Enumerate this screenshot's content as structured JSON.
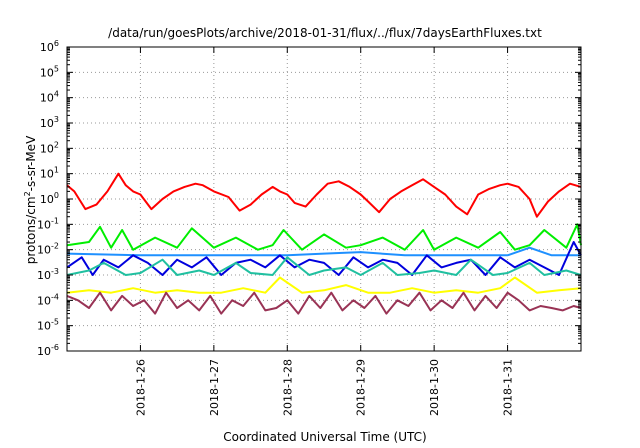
{
  "chart_data": {
    "type": "line",
    "title": "/data/run/goesPlots/archive/2018-01-31/flux/../flux/7daysEarthFluxes.txt",
    "xlabel": "Coordinated Universal Time (UTC)",
    "ylabel_parts": [
      "protons/cm",
      "2",
      "-s-sr-MeV"
    ],
    "yscale": "log",
    "ylim_exp": [
      -6,
      6
    ],
    "y_ticks": [
      {
        "base": "10",
        "exp": "-6"
      },
      {
        "base": "10",
        "exp": "-5"
      },
      {
        "base": "10",
        "exp": "-4"
      },
      {
        "base": "10",
        "exp": "-3"
      },
      {
        "base": "10",
        "exp": "-2"
      },
      {
        "base": "10",
        "exp": "-1"
      },
      {
        "base": "10",
        "exp": "0"
      },
      {
        "base": "10",
        "exp": "1"
      },
      {
        "base": "10",
        "exp": "2"
      },
      {
        "base": "10",
        "exp": "3"
      },
      {
        "base": "10",
        "exp": "4"
      },
      {
        "base": "10",
        "exp": "5"
      },
      {
        "base": "10",
        "exp": "6"
      }
    ],
    "x_range_days": [
      0,
      7
    ],
    "x_ticks": [
      {
        "label": "2018-1-26",
        "day": 1
      },
      {
        "label": "2018-1-27",
        "day": 2
      },
      {
        "label": "2018-1-28",
        "day": 3
      },
      {
        "label": "2018-1-29",
        "day": 4
      },
      {
        "label": "2018-1-30",
        "day": 5
      },
      {
        "label": "2018-1-31",
        "day": 6
      }
    ],
    "grid": true,
    "series": [
      {
        "color": "#ff0000",
        "days": [
          0.0,
          0.1,
          0.25,
          0.4,
          0.55,
          0.7,
          0.8,
          0.9,
          1.0,
          1.15,
          1.3,
          1.45,
          1.6,
          1.75,
          1.85,
          2.0,
          2.2,
          2.35,
          2.5,
          2.65,
          2.8,
          2.9,
          3.0,
          3.1,
          3.25,
          3.4,
          3.55,
          3.7,
          3.85,
          4.0,
          4.1,
          4.25,
          4.4,
          4.55,
          4.7,
          4.85,
          5.0,
          5.15,
          5.3,
          5.45,
          5.6,
          5.75,
          5.9,
          6.0,
          6.15,
          6.3,
          6.4,
          6.55,
          6.7,
          6.85,
          7.0
        ],
        "values": [
          3.5,
          2.0,
          0.4,
          0.6,
          2.0,
          10.0,
          3.5,
          2.0,
          1.5,
          0.4,
          1.0,
          2.0,
          3.0,
          4.0,
          3.5,
          2.0,
          1.2,
          0.35,
          0.6,
          1.5,
          3.0,
          2.0,
          1.5,
          0.7,
          0.5,
          1.5,
          4.0,
          5.0,
          3.0,
          1.5,
          0.8,
          0.3,
          1.0,
          2.0,
          3.5,
          6.0,
          3.0,
          1.5,
          0.5,
          0.25,
          1.5,
          2.5,
          3.5,
          4.0,
          3.0,
          1.0,
          0.2,
          0.8,
          2.0,
          4.0,
          3.0
        ]
      },
      {
        "color": "#00ee00",
        "days": [
          0.0,
          0.3,
          0.45,
          0.6,
          0.75,
          0.9,
          1.2,
          1.5,
          1.7,
          2.0,
          2.3,
          2.6,
          2.8,
          2.95,
          3.2,
          3.5,
          3.8,
          4.0,
          4.3,
          4.6,
          4.85,
          5.0,
          5.3,
          5.6,
          5.9,
          6.1,
          6.3,
          6.5,
          6.8,
          6.95,
          7.0
        ],
        "values": [
          0.015,
          0.02,
          0.08,
          0.012,
          0.06,
          0.01,
          0.03,
          0.012,
          0.07,
          0.012,
          0.03,
          0.01,
          0.015,
          0.06,
          0.01,
          0.04,
          0.012,
          0.015,
          0.03,
          0.01,
          0.06,
          0.01,
          0.03,
          0.012,
          0.05,
          0.01,
          0.015,
          0.06,
          0.012,
          0.1,
          0.015
        ]
      },
      {
        "color": "#1e90ff",
        "days": [
          0.0,
          1.0,
          2.0,
          3.0,
          3.5,
          4.0,
          4.6,
          5.0,
          6.0,
          6.3,
          6.6,
          7.0
        ],
        "values": [
          0.007,
          0.006,
          0.006,
          0.006,
          0.007,
          0.008,
          0.006,
          0.006,
          0.006,
          0.012,
          0.006,
          0.006
        ]
      },
      {
        "color": "#0000dd",
        "days": [
          0.0,
          0.2,
          0.35,
          0.5,
          0.7,
          0.9,
          1.1,
          1.3,
          1.5,
          1.7,
          1.9,
          2.1,
          2.3,
          2.5,
          2.7,
          2.9,
          3.1,
          3.3,
          3.5,
          3.7,
          3.9,
          4.1,
          4.3,
          4.5,
          4.7,
          4.9,
          5.1,
          5.3,
          5.5,
          5.7,
          5.9,
          6.1,
          6.3,
          6.5,
          6.7,
          6.9,
          7.0
        ],
        "values": [
          0.002,
          0.005,
          0.001,
          0.004,
          0.002,
          0.006,
          0.003,
          0.001,
          0.004,
          0.002,
          0.005,
          0.001,
          0.003,
          0.004,
          0.002,
          0.006,
          0.002,
          0.004,
          0.003,
          0.001,
          0.005,
          0.002,
          0.004,
          0.003,
          0.001,
          0.006,
          0.002,
          0.003,
          0.004,
          0.001,
          0.005,
          0.002,
          0.004,
          0.002,
          0.001,
          0.02,
          0.006
        ]
      },
      {
        "color": "#20c0a0",
        "days": [
          0.0,
          0.3,
          0.5,
          0.8,
          1.0,
          1.3,
          1.5,
          1.8,
          2.0,
          2.3,
          2.5,
          2.8,
          3.0,
          3.3,
          3.5,
          3.8,
          4.0,
          4.3,
          4.5,
          4.8,
          5.0,
          5.3,
          5.5,
          5.8,
          6.0,
          6.3,
          6.5,
          6.8,
          7.0
        ],
        "values": [
          0.001,
          0.0015,
          0.003,
          0.001,
          0.0012,
          0.004,
          0.001,
          0.0015,
          0.001,
          0.003,
          0.0012,
          0.001,
          0.005,
          0.001,
          0.0015,
          0.002,
          0.001,
          0.003,
          0.001,
          0.0012,
          0.0015,
          0.001,
          0.004,
          0.001,
          0.0012,
          0.003,
          0.001,
          0.0015,
          0.001
        ]
      },
      {
        "color": "#ffff00",
        "days": [
          0.0,
          0.3,
          0.6,
          0.9,
          1.2,
          1.5,
          1.8,
          2.1,
          2.4,
          2.7,
          2.9,
          3.2,
          3.5,
          3.8,
          4.1,
          4.4,
          4.7,
          5.0,
          5.3,
          5.6,
          5.9,
          6.1,
          6.4,
          6.7,
          7.0
        ],
        "values": [
          0.0002,
          0.00025,
          0.0002,
          0.0003,
          0.0002,
          0.00025,
          0.0002,
          0.0002,
          0.0003,
          0.0002,
          0.0008,
          0.0002,
          0.00025,
          0.0004,
          0.0002,
          0.0002,
          0.0003,
          0.0002,
          0.00025,
          0.0002,
          0.0003,
          0.0008,
          0.0002,
          0.00025,
          0.0003
        ]
      },
      {
        "color": "#993355",
        "days": [
          0.0,
          0.15,
          0.3,
          0.45,
          0.6,
          0.75,
          0.9,
          1.05,
          1.2,
          1.35,
          1.5,
          1.65,
          1.8,
          1.95,
          2.1,
          2.25,
          2.4,
          2.55,
          2.7,
          2.85,
          3.0,
          3.15,
          3.3,
          3.45,
          3.6,
          3.75,
          3.9,
          4.05,
          4.2,
          4.35,
          4.5,
          4.65,
          4.8,
          4.95,
          5.1,
          5.25,
          5.4,
          5.55,
          5.7,
          5.85,
          6.0,
          6.15,
          6.3,
          6.45,
          6.6,
          6.75,
          6.9,
          7.0
        ],
        "values": [
          0.00015,
          0.0001,
          5e-05,
          0.0002,
          4e-05,
          0.00015,
          6e-05,
          0.0001,
          3e-05,
          0.0002,
          5e-05,
          0.0001,
          4e-05,
          0.00015,
          3e-05,
          0.0001,
          6e-05,
          0.0002,
          4e-05,
          5e-05,
          0.0001,
          3e-05,
          0.00015,
          5e-05,
          0.0002,
          4e-05,
          0.0001,
          5e-05,
          0.00015,
          3e-05,
          0.0001,
          6e-05,
          0.0002,
          4e-05,
          0.0001,
          5e-05,
          0.0002,
          4e-05,
          0.00015,
          5e-05,
          0.0002,
          0.0001,
          4e-05,
          6e-05,
          5e-05,
          4e-05,
          6e-05,
          5e-05
        ]
      }
    ]
  }
}
